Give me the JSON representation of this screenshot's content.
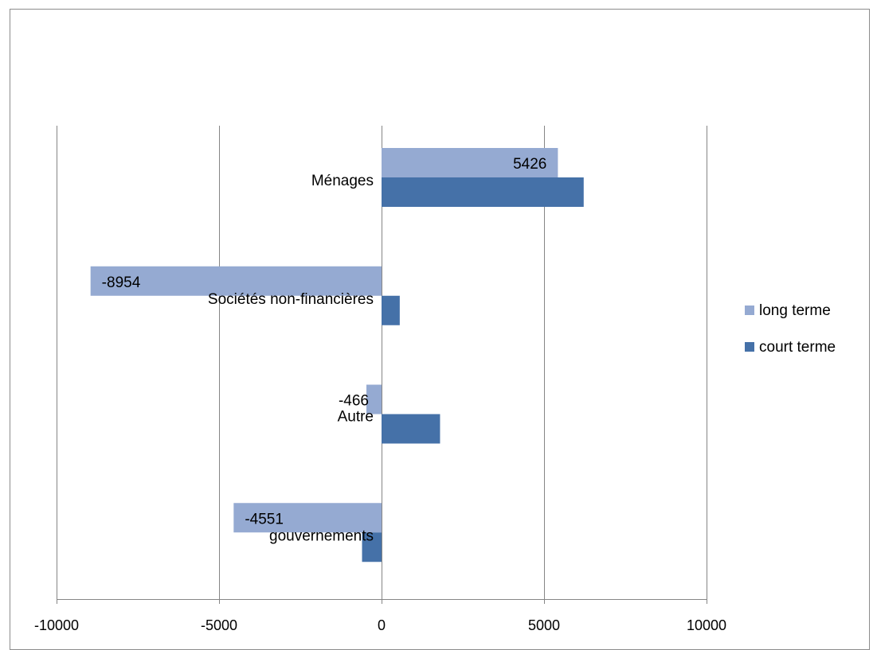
{
  "chart_data": {
    "type": "bar",
    "orientation": "horizontal",
    "categories": [
      "Ménages",
      "Sociétés non-financières",
      "Autre",
      "gouvernements"
    ],
    "series": [
      {
        "name": "long terme",
        "values": [
          5426,
          -8954,
          -466,
          -4551
        ],
        "color": "#95AAD2",
        "data_labels": [
          "5426",
          "-8954",
          "-466",
          "-4551"
        ]
      },
      {
        "name": "court terme",
        "values": [
          6220,
          560,
          1800,
          -600
        ],
        "color": "#4571A8"
      }
    ],
    "xlim": [
      -10000,
      10000
    ],
    "xticks": [
      -10000,
      -5000,
      0,
      5000,
      10000
    ],
    "xtick_labels": [
      "-10000",
      "-5000",
      "0",
      "5000",
      "10000"
    ],
    "grid": "vertical",
    "legend": "right",
    "title": "",
    "xlabel": "",
    "ylabel": ""
  }
}
